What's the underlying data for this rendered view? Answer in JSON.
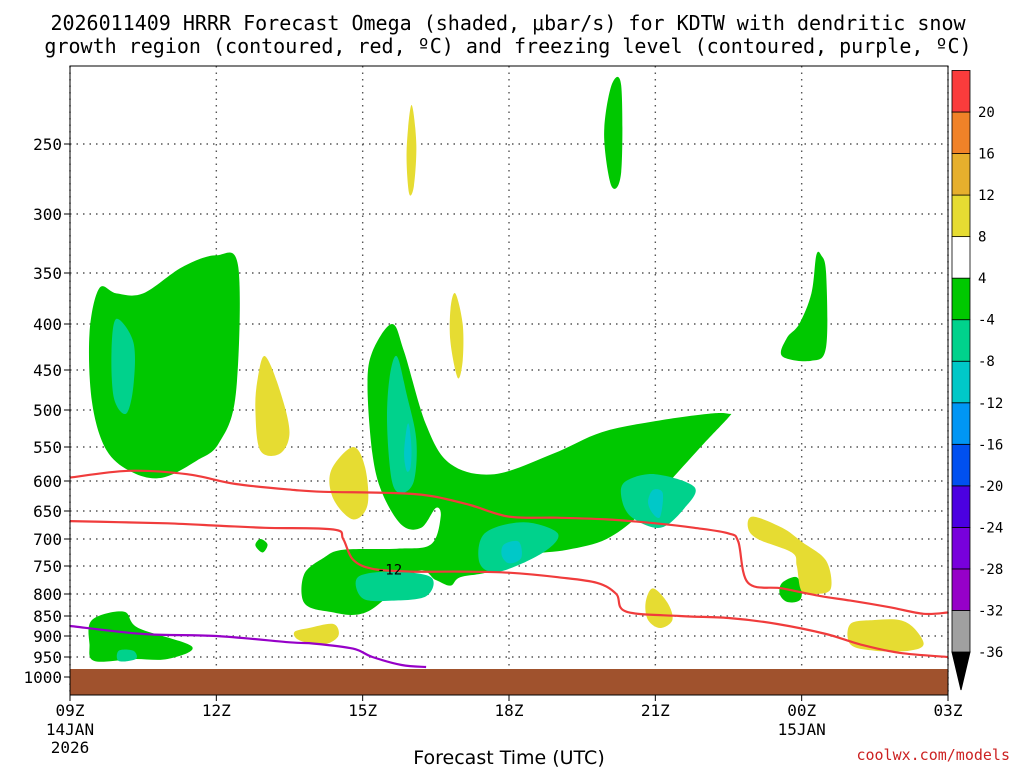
{
  "chart_data": {
    "type": "contour",
    "title_line1": "2026011409 HRRR Forecast Omega (shaded, μbar/s) for KDTW with dendritic snow",
    "title_line2": "growth region (contoured, red, ºC) and freezing level (contoured, purple, ºC)",
    "xlabel": "Forecast Time (UTC)",
    "credit": "coolwx.com/models",
    "x_range_hours": [
      0,
      18
    ],
    "y_range_hpa": [
      1040,
      210
    ],
    "x_ticks": [
      {
        "h": 0,
        "label": "09Z",
        "sub": [
          "14JAN",
          "2026"
        ]
      },
      {
        "h": 3,
        "label": "12Z",
        "sub": []
      },
      {
        "h": 6,
        "label": "15Z",
        "sub": []
      },
      {
        "h": 9,
        "label": "18Z",
        "sub": []
      },
      {
        "h": 12,
        "label": "21Z",
        "sub": []
      },
      {
        "h": 15,
        "label": "00Z",
        "sub": [
          "15JAN"
        ]
      },
      {
        "h": 18,
        "label": "03Z",
        "sub": []
      }
    ],
    "y_ticks": [
      {
        "p": 250,
        "label": "250"
      },
      {
        "p": 300,
        "label": "300"
      },
      {
        "p": 350,
        "label": "350"
      },
      {
        "p": 400,
        "label": "400"
      },
      {
        "p": 450,
        "label": "450"
      },
      {
        "p": 500,
        "label": "500"
      },
      {
        "p": 550,
        "label": "550"
      },
      {
        "p": 600,
        "label": "600"
      },
      {
        "p": 650,
        "label": "650"
      },
      {
        "p": 700,
        "label": "700"
      },
      {
        "p": 750,
        "label": "750"
      },
      {
        "p": 800,
        "label": "800"
      },
      {
        "p": 850,
        "label": "850"
      },
      {
        "p": 900,
        "label": "900"
      },
      {
        "p": 950,
        "label": "950"
      },
      {
        "p": 1000,
        "label": "1000"
      }
    ],
    "colorbar": {
      "colors": [
        "#a0a0a0",
        "#9600c8",
        "#7800dc",
        "#4b00e1",
        "#0050f0",
        "#0096f5",
        "#00c8c8",
        "#00d28c",
        "#00c800",
        "#ffffff",
        "#e6dc32",
        "#e6af2d",
        "#f08228",
        "#fa3c3c",
        "#f00082"
      ],
      "labels": [
        "-36",
        "-32",
        "-28",
        "-24",
        "-20",
        "-16",
        "-12",
        "-8",
        "-4",
        "4",
        "8",
        "12",
        "16",
        "20"
      ]
    },
    "contour_label": "-12",
    "ground_top_hpa": 980,
    "shaded_regions": [
      {
        "color": "#00c800",
        "points": [
          [
            0.95,
            370
          ],
          [
            1.5,
            370
          ],
          [
            2.3,
            345
          ],
          [
            3,
            335
          ],
          [
            3.45,
            345
          ],
          [
            3.4,
            480
          ],
          [
            3.05,
            545
          ],
          [
            2.6,
            570
          ],
          [
            1.9,
            595
          ],
          [
            1.3,
            588
          ],
          [
            0.75,
            555
          ],
          [
            0.45,
            490
          ],
          [
            0.4,
            410
          ],
          [
            0.6,
            365
          ]
        ]
      },
      {
        "color": "#00d28c",
        "points": [
          [
            0.95,
            395
          ],
          [
            1.3,
            420
          ],
          [
            1.3,
            470
          ],
          [
            1.15,
            505
          ],
          [
            0.9,
            485
          ],
          [
            0.85,
            430
          ]
        ]
      },
      {
        "color": "#00c800",
        "points": [
          [
            6.6,
            400
          ],
          [
            6.85,
            430
          ],
          [
            7.3,
            520
          ],
          [
            7.8,
            575
          ],
          [
            8.7,
            590
          ],
          [
            9.9,
            560
          ],
          [
            10.9,
            530
          ],
          [
            12.0,
            515
          ],
          [
            13.1,
            505
          ],
          [
            13.5,
            505
          ],
          [
            13.5,
            510
          ],
          [
            13.0,
            545
          ],
          [
            12.3,
            600
          ],
          [
            11.7,
            655
          ],
          [
            11.0,
            700
          ],
          [
            10.2,
            720
          ],
          [
            9.4,
            730
          ],
          [
            8.6,
            760
          ],
          [
            8.0,
            770
          ],
          [
            7.8,
            785
          ],
          [
            7.5,
            775
          ],
          [
            7.1,
            760
          ],
          [
            6.1,
            840
          ],
          [
            5.3,
            840
          ],
          [
            4.8,
            820
          ],
          [
            4.8,
            765
          ],
          [
            5.2,
            735
          ],
          [
            5.6,
            720
          ],
          [
            6.7,
            718
          ],
          [
            7.4,
            710
          ],
          [
            7.6,
            660
          ],
          [
            7.5,
            645
          ],
          [
            7.2,
            680
          ],
          [
            6.8,
            675
          ],
          [
            6.4,
            620
          ],
          [
            6.2,
            560
          ],
          [
            6.1,
            470
          ],
          [
            6.2,
            430
          ]
        ]
      },
      {
        "color": "#00d28c",
        "points": [
          [
            6.7,
            435
          ],
          [
            6.9,
            480
          ],
          [
            7.1,
            540
          ],
          [
            7.05,
            600
          ],
          [
            6.8,
            620
          ],
          [
            6.6,
            600
          ],
          [
            6.5,
            520
          ],
          [
            6.55,
            460
          ]
        ]
      },
      {
        "color": "#00c8c8",
        "points": [
          [
            6.95,
            520
          ],
          [
            7.0,
            550
          ],
          [
            6.98,
            580
          ],
          [
            6.9,
            585
          ],
          [
            6.85,
            560
          ],
          [
            6.9,
            525
          ]
        ]
      },
      {
        "color": "#00d28c",
        "points": [
          [
            11.4,
            600
          ],
          [
            12.0,
            590
          ],
          [
            12.8,
            610
          ],
          [
            12.6,
            645
          ],
          [
            12.1,
            680
          ],
          [
            11.5,
            660
          ],
          [
            11.3,
            625
          ]
        ]
      },
      {
        "color": "#00c8c8",
        "points": [
          [
            11.95,
            615
          ],
          [
            12.15,
            620
          ],
          [
            12.1,
            660
          ],
          [
            11.95,
            655
          ],
          [
            11.85,
            635
          ]
        ]
      },
      {
        "color": "#00d28c",
        "points": [
          [
            8.5,
            690
          ],
          [
            9.3,
            670
          ],
          [
            10.0,
            690
          ],
          [
            9.7,
            725
          ],
          [
            8.8,
            760
          ],
          [
            8.4,
            745
          ]
        ]
      },
      {
        "color": "#00c8c8",
        "points": [
          [
            8.9,
            710
          ],
          [
            9.2,
            705
          ],
          [
            9.25,
            735
          ],
          [
            9.0,
            745
          ],
          [
            8.85,
            730
          ]
        ]
      },
      {
        "color": "#00d28c",
        "points": [
          [
            5.9,
            770
          ],
          [
            6.6,
            760
          ],
          [
            7.4,
            770
          ],
          [
            7.3,
            805
          ],
          [
            6.6,
            815
          ],
          [
            6.0,
            810
          ]
        ]
      },
      {
        "color": "#00c800",
        "points": [
          [
            0.45,
            860
          ],
          [
            1.1,
            840
          ],
          [
            1.4,
            880
          ],
          [
            2.5,
            925
          ],
          [
            2.0,
            955
          ],
          [
            1.3,
            955
          ],
          [
            0.5,
            960
          ],
          [
            0.4,
            920
          ]
        ]
      },
      {
        "color": "#00d28c",
        "points": [
          [
            1.0,
            935
          ],
          [
            1.3,
            935
          ],
          [
            1.35,
            955
          ],
          [
            1.0,
            960
          ]
        ]
      },
      {
        "color": "#00c800",
        "points": [
          [
            3.9,
            700
          ],
          [
            4.05,
            710
          ],
          [
            3.95,
            725
          ],
          [
            3.8,
            712
          ]
        ]
      },
      {
        "color": "#00c800",
        "points": [
          [
            15.3,
            335
          ],
          [
            15.4,
            335
          ],
          [
            15.5,
            350
          ],
          [
            15.5,
            425
          ],
          [
            15.2,
            440
          ],
          [
            14.6,
            435
          ],
          [
            14.7,
            415
          ],
          [
            14.95,
            400
          ],
          [
            15.2,
            370
          ]
        ]
      },
      {
        "color": "#00c800",
        "points": [
          [
            14.6,
            780
          ],
          [
            14.9,
            770
          ],
          [
            15.0,
            795
          ],
          [
            14.95,
            815
          ],
          [
            14.7,
            818
          ],
          [
            14.55,
            800
          ]
        ]
      },
      {
        "color": "#00c800",
        "points": [
          [
            11.1,
            220
          ],
          [
            11.3,
            220
          ],
          [
            11.3,
            270
          ],
          [
            11.1,
            280
          ],
          [
            10.95,
            245
          ]
        ]
      },
      {
        "color": "#e6dc32",
        "points": [
          [
            7.0,
            230
          ],
          [
            7.1,
            250
          ],
          [
            7.05,
            280
          ],
          [
            6.95,
            285
          ],
          [
            6.9,
            255
          ]
        ]
      },
      {
        "color": "#e6dc32",
        "points": [
          [
            7.9,
            370
          ],
          [
            8.05,
            400
          ],
          [
            8.05,
            440
          ],
          [
            7.95,
            460
          ],
          [
            7.8,
            420
          ],
          [
            7.8,
            385
          ]
        ]
      },
      {
        "color": "#e6dc32",
        "points": [
          [
            4.0,
            435
          ],
          [
            4.3,
            475
          ],
          [
            4.5,
            530
          ],
          [
            4.3,
            560
          ],
          [
            3.9,
            555
          ],
          [
            3.8,
            500
          ],
          [
            3.85,
            460
          ]
        ]
      },
      {
        "color": "#e6dc32",
        "points": [
          [
            5.8,
            550
          ],
          [
            6.05,
            580
          ],
          [
            6.1,
            640
          ],
          [
            5.8,
            665
          ],
          [
            5.4,
            630
          ],
          [
            5.35,
            585
          ]
        ]
      },
      {
        "color": "#e6dc32",
        "points": [
          [
            4.9,
            880
          ],
          [
            5.4,
            870
          ],
          [
            5.5,
            900
          ],
          [
            5.2,
            920
          ],
          [
            4.7,
            910
          ],
          [
            4.6,
            890
          ]
        ]
      },
      {
        "color": "#e6dc32",
        "points": [
          [
            11.95,
            790
          ],
          [
            12.25,
            820
          ],
          [
            12.35,
            860
          ],
          [
            12.1,
            880
          ],
          [
            11.85,
            860
          ],
          [
            11.8,
            820
          ]
        ]
      },
      {
        "color": "#e6dc32",
        "points": [
          [
            14.0,
            660
          ],
          [
            14.6,
            680
          ],
          [
            15.0,
            705
          ],
          [
            15.5,
            740
          ],
          [
            15.6,
            790
          ],
          [
            15.3,
            800
          ],
          [
            15.0,
            795
          ],
          [
            14.9,
            750
          ],
          [
            14.8,
            725
          ],
          [
            14.1,
            700
          ],
          [
            13.9,
            680
          ]
        ]
      },
      {
        "color": "#e6dc32",
        "points": [
          [
            16.0,
            870
          ],
          [
            16.5,
            860
          ],
          [
            17.0,
            860
          ],
          [
            17.3,
            880
          ],
          [
            17.5,
            920
          ],
          [
            17.2,
            935
          ],
          [
            16.5,
            935
          ],
          [
            16.0,
            920
          ]
        ]
      }
    ],
    "red_contours": [
      [
        [
          0,
          595
        ],
        [
          1.2,
          585
        ],
        [
          2.4,
          590
        ],
        [
          3.4,
          605
        ],
        [
          4.6,
          615
        ],
        [
          5.2,
          618
        ],
        [
          6.6,
          620
        ],
        [
          7.4,
          625
        ],
        [
          8.2,
          640
        ],
        [
          9.0,
          660
        ],
        [
          10.0,
          662
        ],
        [
          11.0,
          665
        ],
        [
          12.0,
          672
        ],
        [
          12.8,
          680
        ],
        [
          13.5,
          690
        ],
        [
          13.7,
          705
        ],
        [
          13.9,
          780
        ],
        [
          14.6,
          790
        ],
        [
          15.4,
          805
        ],
        [
          16.0,
          815
        ],
        [
          16.8,
          830
        ],
        [
          17.5,
          845
        ],
        [
          18,
          842
        ]
      ],
      [
        [
          0,
          668
        ],
        [
          1.0,
          670
        ],
        [
          2.0,
          672
        ],
        [
          3.0,
          676
        ],
        [
          4.0,
          680
        ],
        [
          5.4,
          683
        ],
        [
          5.6,
          700
        ],
        [
          5.8,
          738
        ],
        [
          6.2,
          755
        ],
        [
          7.0,
          760
        ],
        [
          8.0,
          760
        ],
        [
          9.0,
          762
        ],
        [
          10.0,
          770
        ],
        [
          10.8,
          780
        ],
        [
          11.2,
          800
        ],
        [
          11.4,
          840
        ],
        [
          12.5,
          850
        ],
        [
          13.5,
          855
        ],
        [
          14.5,
          870
        ],
        [
          15.5,
          895
        ],
        [
          16.2,
          920
        ],
        [
          17.0,
          940
        ],
        [
          18,
          950
        ]
      ]
    ],
    "purple_contours": [
      [
        [
          0,
          875
        ],
        [
          1.5,
          895
        ],
        [
          3.0,
          900
        ],
        [
          4.5,
          915
        ],
        [
          5.0,
          918
        ],
        [
          5.8,
          930
        ],
        [
          6.2,
          950
        ],
        [
          6.8,
          970
        ],
        [
          7.3,
          975
        ]
      ]
    ]
  }
}
